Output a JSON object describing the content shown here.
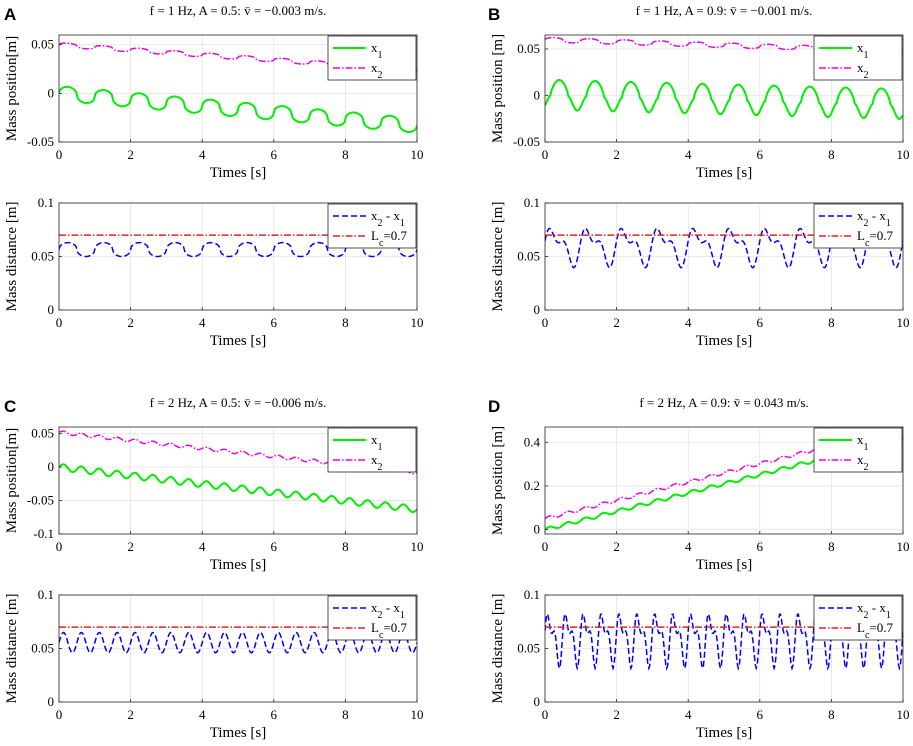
{
  "figure": {
    "colors": {
      "x1": "#00ee00",
      "x2": "#ee00ee",
      "distance": "#0000ff",
      "lc": "#e32222",
      "axis": "#262626",
      "grid": "#e3e3e3"
    }
  },
  "chart_data": [
    {
      "id": "A-top",
      "panel_letter": "A",
      "type": "line",
      "title": "f = 1 Hz, A = 0.5: v̄ = −0.003 m/s.",
      "xlabel": "Times [s]",
      "ylabel": "Mass position[m]",
      "xlim": [
        0,
        10
      ],
      "ylim": [
        -0.05,
        0.06
      ],
      "xticks": [
        0,
        2,
        4,
        6,
        8,
        10
      ],
      "yticks": [
        -0.05,
        0,
        0.05
      ],
      "ytick_labels": [
        "-0.05",
        "0",
        "0.05"
      ],
      "grid": true,
      "legend_position": "top-right",
      "series": [
        {
          "name": "x1",
          "legend": "x",
          "legend_sub": "1",
          "style": "solid",
          "color": "#00ee00",
          "model": {
            "offset": 0.0,
            "slope": -0.0033,
            "freq": 1,
            "amp": 0.0075,
            "shape": "plateau"
          }
        },
        {
          "name": "x2",
          "legend": "x",
          "legend_sub": "2",
          "style": "dashdot",
          "color": "#ee00ee",
          "model": {
            "offset": 0.05,
            "slope": -0.0026,
            "freq": 1,
            "amp": 0.0022,
            "shape": "plateau"
          }
        }
      ]
    },
    {
      "id": "A-bottom",
      "type": "line",
      "xlabel": "Times [s]",
      "ylabel": "Mass distance [m]",
      "xlim": [
        0,
        10
      ],
      "ylim": [
        0,
        0.1
      ],
      "xticks": [
        0,
        2,
        4,
        6,
        8,
        10
      ],
      "yticks": [
        0,
        0.05,
        0.1
      ],
      "ytick_labels": [
        "0",
        "0.05",
        "0.1"
      ],
      "grid": true,
      "legend_position": "top-right",
      "series": [
        {
          "name": "x2 - x1",
          "legend": "x",
          "legend_sub": "2",
          "legend_rest": " - x",
          "legend_sub2": "1",
          "style": "dashed",
          "color": "#0000ff",
          "model": {
            "offset": 0.0565,
            "slope": 0,
            "freq": 1,
            "amp": 0.0065,
            "shape": "plateau"
          }
        },
        {
          "name": "Lc=0.7",
          "legend": "L",
          "legend_sub": "c",
          "legend_rest": "=0.7",
          "style": "dashdot",
          "color": "#e32222",
          "model": {
            "offset": 0.07,
            "slope": 0,
            "freq": 0,
            "amp": 0,
            "shape": "flat"
          }
        }
      ]
    },
    {
      "id": "B-top",
      "panel_letter": "B",
      "type": "line",
      "title": "f = 1 Hz, A = 0.9: v̄ = −0.001 m/s.",
      "xlabel": "Times [s]",
      "ylabel": "Mass position [m]",
      "xlim": [
        0,
        10
      ],
      "ylim": [
        -0.05,
        0.065
      ],
      "xticks": [
        0,
        2,
        4,
        6,
        8,
        10
      ],
      "yticks": [
        -0.05,
        0,
        0.05
      ],
      "ytick_labels": [
        "-0.05",
        "0",
        "0.05"
      ],
      "grid": true,
      "legend_position": "top-right",
      "series": [
        {
          "name": "x1",
          "legend": "x",
          "legend_sub": "1",
          "style": "solid",
          "color": "#00ee00",
          "model": {
            "offset": 0.0,
            "slope": -0.001,
            "freq": 1,
            "amp": 0.017,
            "shape": "peak"
          }
        },
        {
          "name": "x2",
          "legend": "x",
          "legend_sub": "2",
          "style": "dashdot",
          "color": "#ee00ee",
          "model": {
            "offset": 0.06,
            "slope": -0.0012,
            "freq": 1,
            "amp": 0.0025,
            "shape": "plateau"
          }
        }
      ]
    },
    {
      "id": "B-bottom",
      "type": "line",
      "xlabel": "Times [s]",
      "ylabel": "Mass distance [m]",
      "xlim": [
        0,
        10
      ],
      "ylim": [
        0,
        0.1
      ],
      "xticks": [
        0,
        2,
        4,
        6,
        8,
        10
      ],
      "yticks": [
        0,
        0.05,
        0.1
      ],
      "ytick_labels": [
        "0",
        "0.05",
        "0.1"
      ],
      "grid": true,
      "legend_position": "top-right",
      "series": [
        {
          "name": "x2 - x1",
          "legend": "x",
          "legend_sub": "2",
          "legend_rest": " - x",
          "legend_sub2": "1",
          "style": "dashed",
          "color": "#0000ff",
          "model": {
            "offset": 0.06,
            "slope": 0,
            "freq": 1,
            "amp": 0.018,
            "shape": "double"
          }
        },
        {
          "name": "Lc=0.7",
          "legend": "L",
          "legend_sub": "c",
          "legend_rest": "=0.7",
          "style": "dashdot",
          "color": "#e32222",
          "model": {
            "offset": 0.07,
            "slope": 0,
            "freq": 0,
            "amp": 0,
            "shape": "flat"
          }
        }
      ]
    },
    {
      "id": "C-top",
      "panel_letter": "C",
      "type": "line",
      "title": "f = 2 Hz, A = 0.5: v̄ = −0.006 m/s.",
      "xlabel": "Times [s]",
      "ylabel": "Mass position[m]",
      "xlim": [
        0,
        10
      ],
      "ylim": [
        -0.1,
        0.06
      ],
      "xticks": [
        0,
        2,
        4,
        6,
        8,
        10
      ],
      "yticks": [
        -0.1,
        -0.05,
        0,
        0.05
      ],
      "ytick_labels": [
        "-0.1",
        "-0.05",
        "0",
        "0.05"
      ],
      "grid": true,
      "legend_position": "top-right",
      "series": [
        {
          "name": "x1",
          "legend": "x",
          "legend_sub": "1",
          "style": "solid",
          "color": "#00ee00",
          "model": {
            "offset": 0.0,
            "slope": -0.0063,
            "freq": 2,
            "amp": 0.005,
            "shape": "sine"
          }
        },
        {
          "name": "x2",
          "legend": "x",
          "legend_sub": "2",
          "style": "dashdot",
          "color": "#ee00ee",
          "model": {
            "offset": 0.052,
            "slope": -0.006,
            "freq": 2,
            "amp": 0.0025,
            "shape": "sine"
          }
        }
      ]
    },
    {
      "id": "C-bottom",
      "type": "line",
      "xlabel": "Times [s]",
      "ylabel": "Mass distance [m]",
      "xlim": [
        0,
        10
      ],
      "ylim": [
        0,
        0.1
      ],
      "xticks": [
        0,
        2,
        4,
        6,
        8,
        10
      ],
      "yticks": [
        0,
        0.05,
        0.1
      ],
      "ytick_labels": [
        "0",
        "0.05",
        "0.1"
      ],
      "grid": true,
      "legend_position": "top-right",
      "series": [
        {
          "name": "x2 - x1",
          "legend": "x",
          "legend_sub": "2",
          "legend_rest": " - x",
          "legend_sub2": "1",
          "style": "dashed",
          "color": "#0000ff",
          "model": {
            "offset": 0.0555,
            "slope": 0,
            "freq": 2,
            "amp": 0.0095,
            "shape": "sine"
          }
        },
        {
          "name": "Lc=0.7",
          "legend": "L",
          "legend_sub": "c",
          "legend_rest": "=0.7",
          "style": "dashdot",
          "color": "#e32222",
          "model": {
            "offset": 0.07,
            "slope": 0,
            "freq": 0,
            "amp": 0,
            "shape": "flat"
          }
        }
      ]
    },
    {
      "id": "D-top",
      "panel_letter": "D",
      "type": "line",
      "title": "f = 2 Hz, A = 0.9: v̄ = 0.043 m/s.",
      "xlabel": "Times [s]",
      "ylabel": "Mass position [m]",
      "xlim": [
        0,
        10
      ],
      "ylim": [
        -0.02,
        0.47
      ],
      "xticks": [
        0,
        2,
        4,
        6,
        8,
        10
      ],
      "yticks": [
        0,
        0.2,
        0.4
      ],
      "ytick_labels": [
        "0",
        "0.2",
        "0.4"
      ],
      "grid": true,
      "legend_position": "top-right",
      "series": [
        {
          "name": "x1",
          "legend": "x",
          "legend_sub": "1",
          "style": "solid",
          "color": "#00ee00",
          "model": {
            "offset": 0.0,
            "slope": 0.042,
            "freq": 2,
            "amp": 0.008,
            "shape": "sine"
          }
        },
        {
          "name": "x2",
          "legend": "x",
          "legend_sub": "2",
          "style": "dashdot",
          "color": "#ee00ee",
          "model": {
            "offset": 0.05,
            "slope": 0.042,
            "freq": 2,
            "amp": 0.007,
            "shape": "sine"
          }
        }
      ]
    },
    {
      "id": "D-bottom",
      "type": "line",
      "xlabel": "Times [s]",
      "ylabel": "Mass distance [m]",
      "xlim": [
        0,
        10
      ],
      "ylim": [
        0,
        0.1
      ],
      "xticks": [
        0,
        2,
        4,
        6,
        8,
        10
      ],
      "yticks": [
        0,
        0.05,
        0.1
      ],
      "ytick_labels": [
        "0",
        "0.05",
        "0.1"
      ],
      "grid": true,
      "legend_position": "top-right",
      "series": [
        {
          "name": "x2 - x1",
          "legend": "x",
          "legend_sub": "2",
          "legend_rest": " - x",
          "legend_sub2": "1",
          "style": "dashed",
          "color": "#0000ff",
          "model": {
            "offset": 0.06,
            "slope": 0,
            "freq": 2,
            "amp": 0.025,
            "shape": "double"
          }
        },
        {
          "name": "Lc=0.7",
          "legend": "L",
          "legend_sub": "c",
          "legend_rest": "=0.7",
          "style": "dashdot",
          "color": "#e32222",
          "model": {
            "offset": 0.07,
            "slope": 0,
            "freq": 0,
            "amp": 0,
            "shape": "flat"
          }
        }
      ]
    }
  ]
}
